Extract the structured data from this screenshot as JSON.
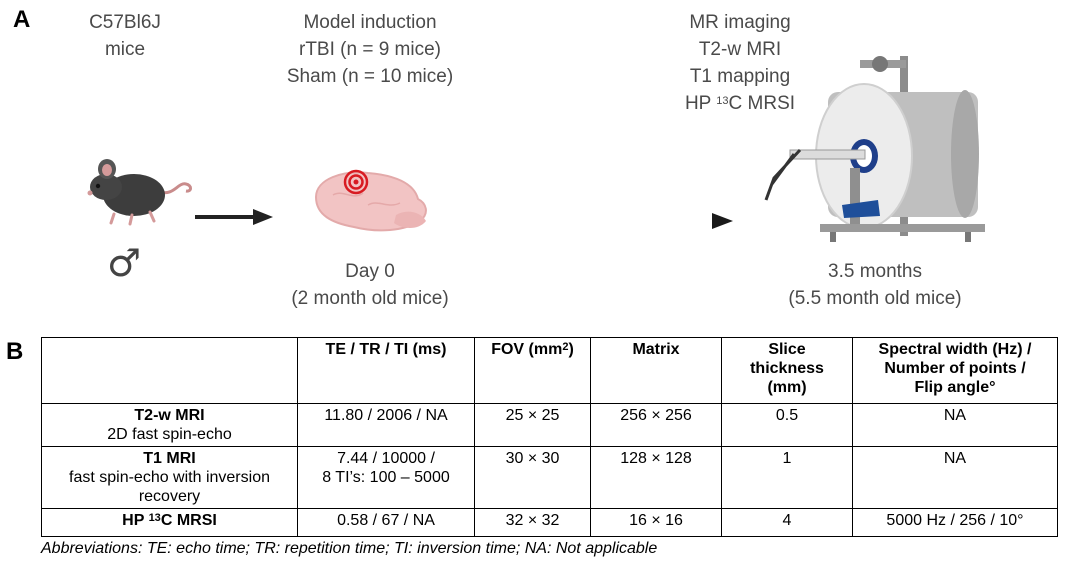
{
  "panel_a": {
    "label": "A",
    "mice": {
      "line1": "C57Bl6J",
      "line2": "mice",
      "sex_symbol": "♂"
    },
    "induction": {
      "line1": "Model induction",
      "line2": "rTBI (n = 9 mice)",
      "line3": "Sham (n = 10 mice)"
    },
    "day0": {
      "line1": "Day 0",
      "line2": "(2 month old mice)"
    },
    "imaging": {
      "line1": "MR imaging",
      "line2": "T2-w MRI",
      "line3": "T1 mapping",
      "line4_prefix": "HP ",
      "line4_sup": "13",
      "line4_suffix": "C MRSI"
    },
    "timepoint": {
      "line1": "3.5 months",
      "line2": "(5.5 month old mice)"
    }
  },
  "panel_b": {
    "label": "B",
    "headers": {
      "te_tr_ti": "TE / TR / TI (ms)",
      "fov_prefix": "FOV (mm",
      "fov_sup": "2",
      "fov_suffix": ")",
      "matrix": "Matrix",
      "slice_1": "Slice",
      "slice_2": "thickness",
      "slice_3": "(mm)",
      "spectral_1": "Spectral width (Hz) /",
      "spectral_2": "Number of points /",
      "spectral_3": "Flip angle°"
    },
    "rows": [
      {
        "name": "T2-w MRI",
        "sub": "2D fast spin-echo",
        "te": "11.80 / 2006 / NA",
        "fov": "25 × 25",
        "matrix": "256 × 256",
        "slice": "0.5",
        "spectral": "NA"
      },
      {
        "name": "T1 MRI",
        "sub": "fast spin-echo with inversion recovery",
        "te_1": "7.44 / 10000 /",
        "te_2": "8 TI’s: 100 – 5000",
        "fov": "30 × 30",
        "matrix": "128 × 128",
        "slice": "1",
        "spectral": "NA"
      },
      {
        "name_prefix": "HP ",
        "name_sup": "13",
        "name_suffix": "C MRSI",
        "te": "0.58 / 67 / NA",
        "fov": "32 × 32",
        "matrix": "16 × 16",
        "slice": "4",
        "spectral": "5000 Hz / 256 / 10°"
      }
    ],
    "abbreviations": "Abbreviations: TE: echo time; TR: repetition time; TI: inversion time; NA: Not applicable"
  }
}
